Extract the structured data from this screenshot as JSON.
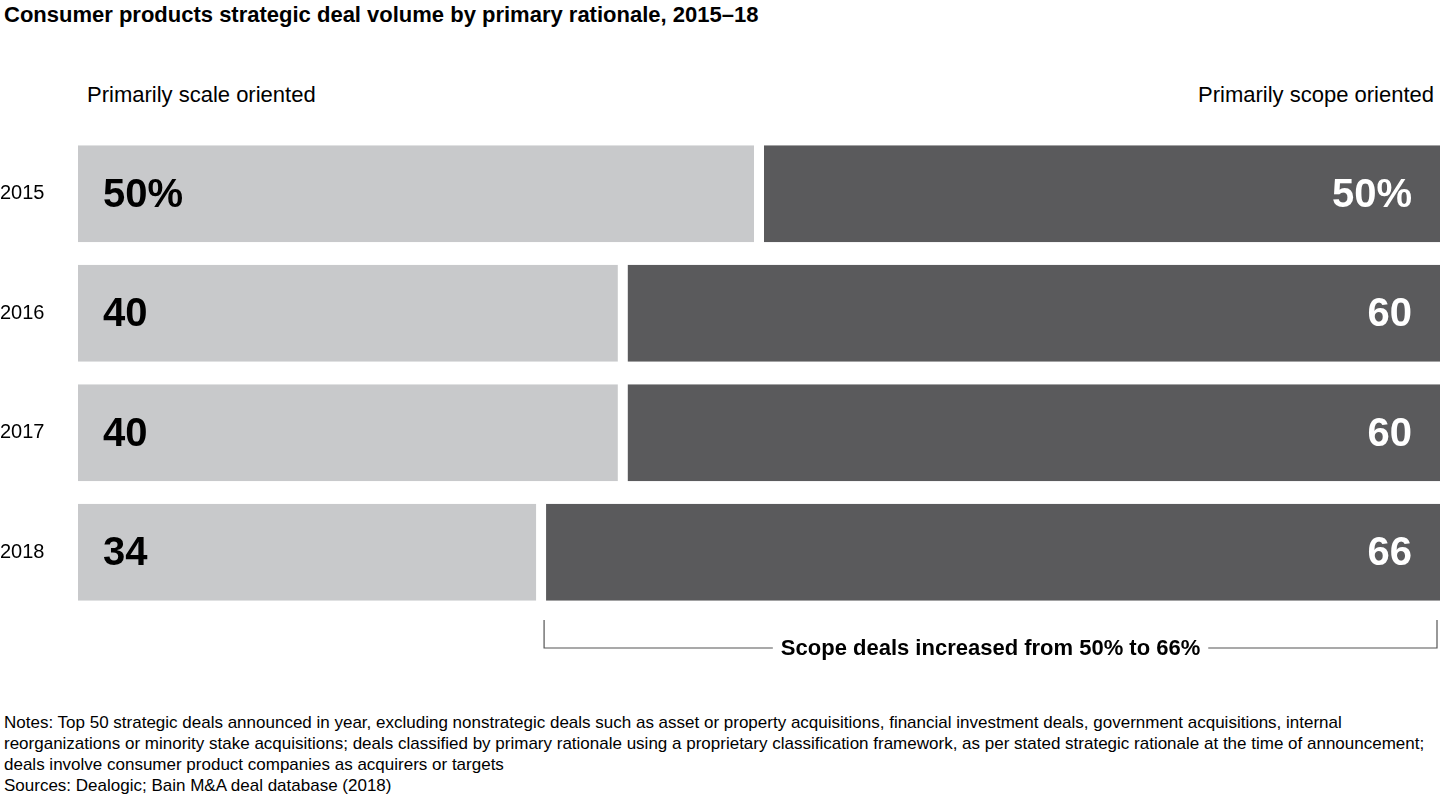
{
  "chart_data": {
    "type": "bar",
    "title": "Consumer products strategic deal volume by primary rationale, 2015–18",
    "orientation": "horizontal",
    "stacked": true,
    "data_labels": true,
    "tick_labels": "y",
    "grid": false,
    "categories": [
      "2015",
      "2016",
      "2017",
      "2018"
    ],
    "xlim": [
      0,
      100
    ],
    "series": [
      {
        "name": "Primarily scale oriented",
        "color": "#c8c9cb",
        "values": [
          50,
          40,
          40,
          34
        ],
        "value_labels": [
          "50%",
          "40",
          "40",
          "34"
        ]
      },
      {
        "name": "Primarily scope oriented",
        "color": "#5a5a5c",
        "values": [
          50,
          60,
          60,
          66
        ],
        "value_labels": [
          "50%",
          "60",
          "60",
          "66"
        ]
      }
    ],
    "annotation": "Scope deals increased from 50% to 66%",
    "notes": "Notes: Top 50 strategic deals announced in year, excluding nonstrategic deals such as asset or property acquisitions, financial investment deals, government acquisitions, internal reorganizations or minority stake acquisitions; deals classified by primary rationale using a proprietary classification framework, as per stated strategic rationale at the time of announcement; deals involve consumer product companies as acquirers or targets",
    "sources": "Sources: Dealogic; Bain M&A deal database (2018)"
  }
}
